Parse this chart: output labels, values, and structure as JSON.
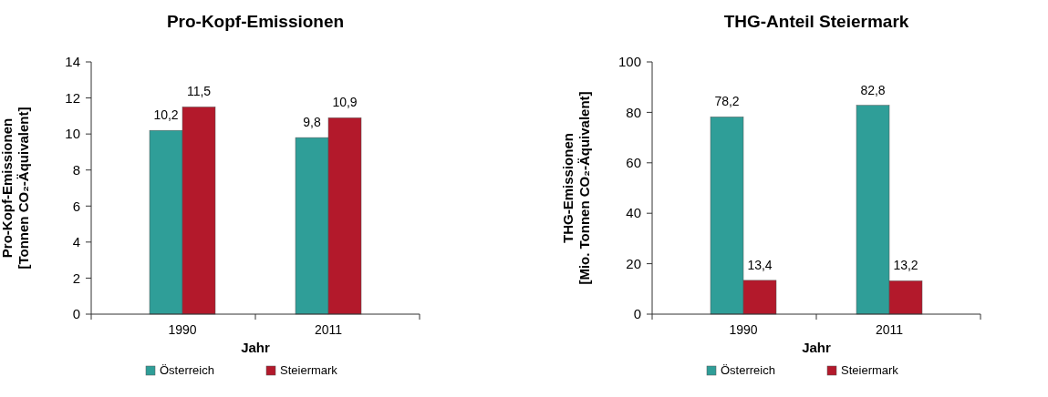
{
  "chart_data": [
    {
      "type": "bar",
      "title": "Pro-Kopf-Emissionen",
      "xlabel": "Jahr",
      "ylabel": "Pro-Kopf-Emissionen\n[Tonnen CO₂-Äquivalent]",
      "categories": [
        "1990",
        "2011"
      ],
      "ylim": [
        0,
        14
      ],
      "yticks": [
        0,
        2,
        4,
        6,
        8,
        10,
        12,
        14
      ],
      "legend": "bottom",
      "series": [
        {
          "name": "Österreich",
          "color": "#2f9e98",
          "values": [
            10.2,
            9.8
          ],
          "value_labels": [
            "10,2",
            "9,8"
          ]
        },
        {
          "name": "Steiermark",
          "color": "#b3192b",
          "values": [
            11.5,
            10.9
          ],
          "value_labels": [
            "11,5",
            "10,9"
          ]
        }
      ]
    },
    {
      "type": "bar",
      "title": "THG-Anteil Steiermark",
      "xlabel": "Jahr",
      "ylabel": "THG-Emissionen\n[Mio. Tonnen CO₂-Äquivalent]",
      "categories": [
        "1990",
        "2011"
      ],
      "ylim": [
        0,
        100
      ],
      "yticks": [
        0,
        20,
        40,
        60,
        80,
        100
      ],
      "legend": "bottom",
      "series": [
        {
          "name": "Österreich",
          "color": "#2f9e98",
          "values": [
            78.2,
            82.8
          ],
          "value_labels": [
            "78,2",
            "82,8"
          ]
        },
        {
          "name": "Steiermark",
          "color": "#b3192b",
          "values": [
            13.4,
            13.2
          ],
          "value_labels": [
            "13,4",
            "13,2"
          ]
        }
      ]
    }
  ]
}
